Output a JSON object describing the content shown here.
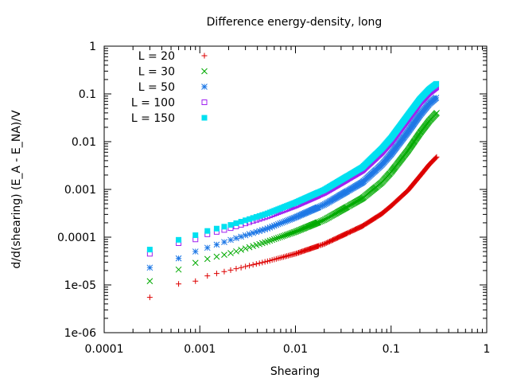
{
  "chart_data": {
    "type": "scatter",
    "title": "Difference energy-density, long",
    "xlabel": "Shearing",
    "ylabel": "d/d(shearing) (E_A - E_NA)/V",
    "xscale": "log",
    "yscale": "log",
    "xlim": [
      0.0001,
      1
    ],
    "ylim": [
      1e-06,
      1
    ],
    "xticks": [
      {
        "v": 0.0001,
        "label": "0.0001"
      },
      {
        "v": 0.001,
        "label": "0.001"
      },
      {
        "v": 0.01,
        "label": "0.01"
      },
      {
        "v": 0.1,
        "label": "0.1"
      },
      {
        "v": 1,
        "label": "1"
      }
    ],
    "yticks": [
      {
        "v": 1e-06,
        "label": "1e-06"
      },
      {
        "v": 1e-05,
        "label": "1e-05"
      },
      {
        "v": 0.0001,
        "label": "0.0001"
      },
      {
        "v": 0.001,
        "label": "0.001"
      },
      {
        "v": 0.01,
        "label": "0.01"
      },
      {
        "v": 0.1,
        "label": "0.1"
      },
      {
        "v": 1,
        "label": "1"
      }
    ],
    "grid": false,
    "legend_position": "top-left",
    "series": [
      {
        "name": "L = 20",
        "color": "#dd0000",
        "marker": "plus",
        "anchors": [
          [
            0.0003,
            5.5e-06
          ],
          [
            0.0006,
            1.05e-05
          ],
          [
            0.0009,
            1.2e-05
          ],
          [
            0.0012,
            1.55e-05
          ],
          [
            0.002,
            2e-05
          ],
          [
            0.005,
            3.1e-05
          ],
          [
            0.01,
            4.5e-05
          ],
          [
            0.02,
            7.2e-05
          ],
          [
            0.05,
            0.00017
          ],
          [
            0.08,
            0.00031
          ],
          [
            0.1,
            0.00045
          ],
          [
            0.15,
            0.00095
          ],
          [
            0.2,
            0.0019
          ],
          [
            0.25,
            0.0033
          ],
          [
            0.3,
            0.0048
          ]
        ]
      },
      {
        "name": "L = 30",
        "color": "#00aa00",
        "marker": "cross",
        "anchors": [
          [
            0.0003,
            1.2e-05
          ],
          [
            0.0006,
            2.1e-05
          ],
          [
            0.0009,
            2.9e-05
          ],
          [
            0.0012,
            3.5e-05
          ],
          [
            0.002,
            4.5e-05
          ],
          [
            0.005,
            8e-05
          ],
          [
            0.01,
            0.00013
          ],
          [
            0.02,
            0.00023
          ],
          [
            0.05,
            0.00065
          ],
          [
            0.08,
            0.0014
          ],
          [
            0.1,
            0.0023
          ],
          [
            0.15,
            0.0065
          ],
          [
            0.2,
            0.015
          ],
          [
            0.25,
            0.027
          ],
          [
            0.3,
            0.04
          ]
        ]
      },
      {
        "name": "L = 50",
        "color": "#1e78e6",
        "marker": "star",
        "anchors": [
          [
            0.0003,
            2.3e-05
          ],
          [
            0.0006,
            3.6e-05
          ],
          [
            0.0009,
            5e-05
          ],
          [
            0.0012,
            6e-05
          ],
          [
            0.002,
            8.5e-05
          ],
          [
            0.005,
            0.00015
          ],
          [
            0.01,
            0.00026
          ],
          [
            0.02,
            0.00048
          ],
          [
            0.05,
            0.0014
          ],
          [
            0.08,
            0.0033
          ],
          [
            0.1,
            0.0055
          ],
          [
            0.15,
            0.016
          ],
          [
            0.2,
            0.036
          ],
          [
            0.25,
            0.062
          ],
          [
            0.3,
            0.085
          ]
        ]
      },
      {
        "name": "L = 100",
        "color": "#a020f0",
        "marker": "square",
        "anchors": [
          [
            0.0003,
            4.5e-05
          ],
          [
            0.0006,
            7.5e-05
          ],
          [
            0.0009,
            9e-05
          ],
          [
            0.0012,
            0.000115
          ],
          [
            0.002,
            0.00015
          ],
          [
            0.005,
            0.00027
          ],
          [
            0.01,
            0.00046
          ],
          [
            0.02,
            0.00085
          ],
          [
            0.05,
            0.0025
          ],
          [
            0.08,
            0.006
          ],
          [
            0.1,
            0.01
          ],
          [
            0.15,
            0.03
          ],
          [
            0.2,
            0.066
          ],
          [
            0.25,
            0.105
          ],
          [
            0.3,
            0.14
          ]
        ]
      },
      {
        "name": "L = 150",
        "color": "#00e0f0",
        "marker": "filled-square",
        "anchors": [
          [
            0.0003,
            5.5e-05
          ],
          [
            0.0006,
            8.8e-05
          ],
          [
            0.0009,
            0.00011
          ],
          [
            0.0012,
            0.000135
          ],
          [
            0.002,
            0.000175
          ],
          [
            0.005,
            0.00031
          ],
          [
            0.01,
            0.00053
          ],
          [
            0.02,
            0.00098
          ],
          [
            0.05,
            0.0029
          ],
          [
            0.08,
            0.0072
          ],
          [
            0.1,
            0.012
          ],
          [
            0.15,
            0.036
          ],
          [
            0.2,
            0.078
          ],
          [
            0.25,
            0.125
          ],
          [
            0.3,
            0.165
          ]
        ]
      }
    ]
  }
}
